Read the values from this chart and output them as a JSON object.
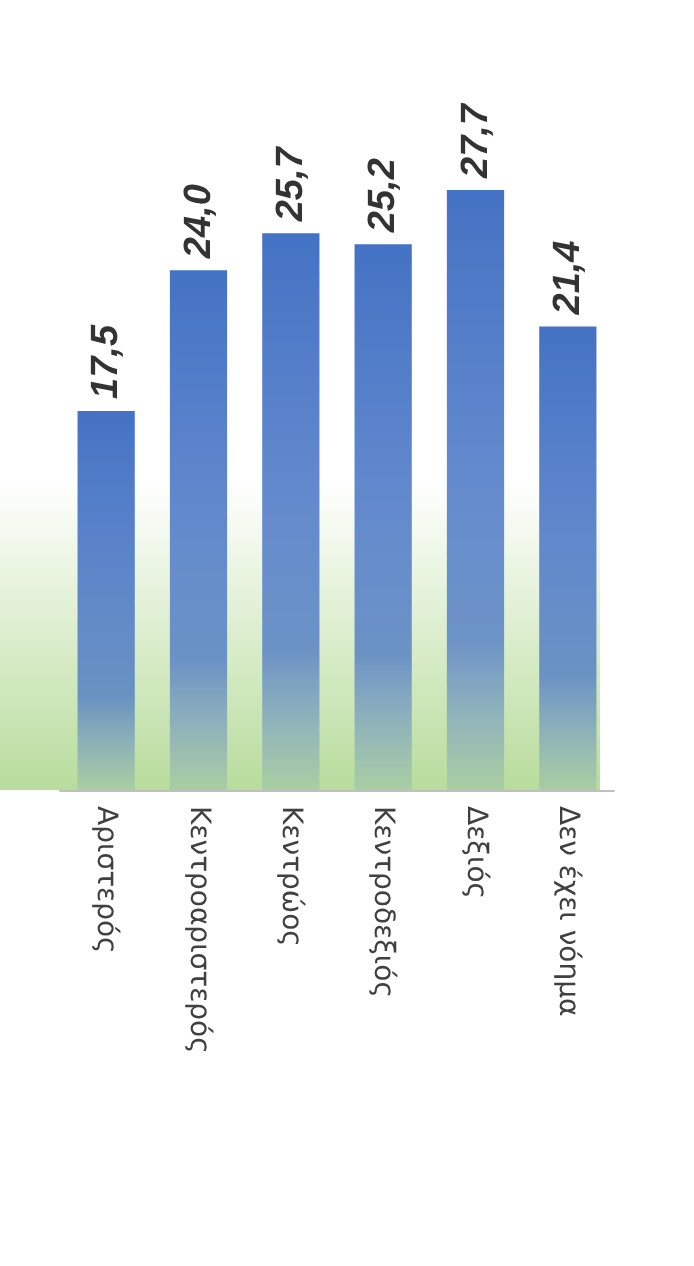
{
  "chart_data": {
    "type": "bar",
    "categories": [
      "Αριστερός",
      "Κεντροαριστερός",
      "Κεντρώος",
      "Κεντροδεξιός",
      "Δεξιός",
      "Δεν έχει νόημα"
    ],
    "values": [
      17.5,
      24.0,
      25.7,
      25.2,
      27.7,
      21.4
    ],
    "value_labels": [
      "17,5",
      "24,0",
      "25,7",
      "25,2",
      "27,7",
      "21,4"
    ],
    "color": "#4472c4",
    "tick_labels": "x"
  }
}
